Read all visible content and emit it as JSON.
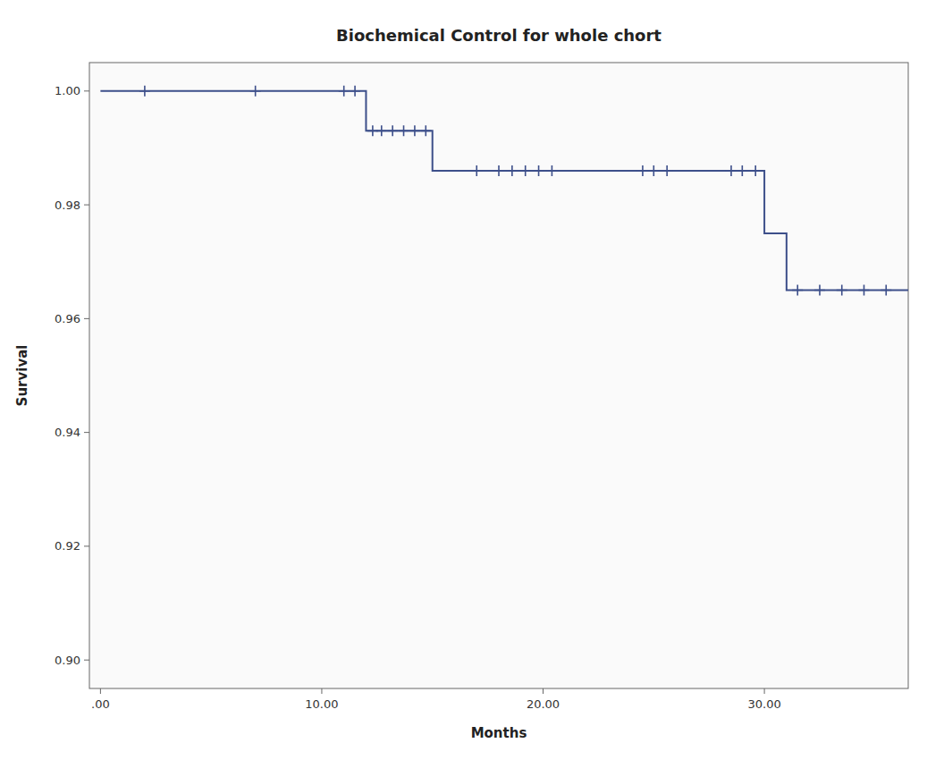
{
  "chart_data": {
    "type": "line",
    "title": "Biochemical Control for whole chort",
    "xlabel": "Months",
    "ylabel": "Survival",
    "xlim": [
      -0.5,
      36.5
    ],
    "ylim": [
      0.895,
      1.005
    ],
    "xticks": [
      {
        "value": 0.0,
        "label": ".00"
      },
      {
        "value": 10.0,
        "label": "10.00"
      },
      {
        "value": 20.0,
        "label": "20.00"
      },
      {
        "value": 30.0,
        "label": "30.00"
      }
    ],
    "yticks": [
      {
        "value": 0.9,
        "label": "0.90"
      },
      {
        "value": 0.92,
        "label": "0.92"
      },
      {
        "value": 0.94,
        "label": "0.94"
      },
      {
        "value": 0.96,
        "label": "0.96"
      },
      {
        "value": 0.98,
        "label": "0.98"
      },
      {
        "value": 1.0,
        "label": "1.00"
      }
    ],
    "grid": false,
    "series": [
      {
        "type": "line",
        "line_style": "solid",
        "color": "#3d4f8a",
        "x": [
          0.0,
          12.0,
          12.0,
          15.0,
          15.0,
          30.0,
          30.0,
          31.0,
          31.0,
          36.5
        ],
        "values": [
          1.0,
          1.0,
          0.993,
          0.993,
          0.986,
          0.986,
          0.975,
          0.975,
          0.965,
          0.965
        ]
      },
      {
        "type": "scatter",
        "marker": "plus",
        "color": "#3d4f8a",
        "x": [
          2.0,
          7.0,
          11.0,
          11.5,
          12.3,
          12.7,
          13.2,
          13.7,
          14.2,
          14.7,
          17.0,
          18.0,
          18.6,
          19.2,
          19.8,
          20.4,
          24.5,
          25.0,
          25.6,
          28.5,
          29.0,
          29.6,
          31.5,
          32.5,
          33.5,
          34.5,
          35.5
        ],
        "values": [
          1.0,
          1.0,
          1.0,
          1.0,
          0.993,
          0.993,
          0.993,
          0.993,
          0.993,
          0.993,
          0.986,
          0.986,
          0.986,
          0.986,
          0.986,
          0.986,
          0.986,
          0.986,
          0.986,
          0.986,
          0.986,
          0.986,
          0.965,
          0.965,
          0.965,
          0.965,
          0.965
        ]
      }
    ]
  }
}
